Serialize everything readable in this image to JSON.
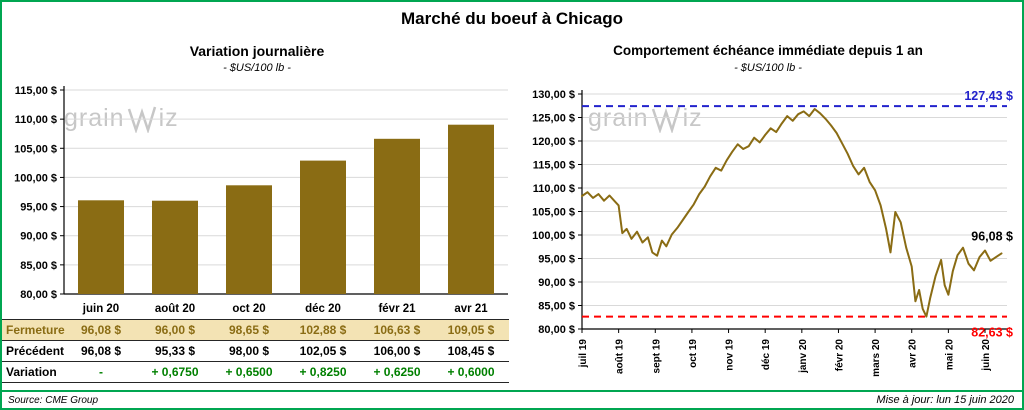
{
  "page": {
    "title": "Marché du boeuf à Chicago",
    "source": "Source: CME Group",
    "updated": "Mise à jour: lun 15 juin 2020",
    "watermark": {
      "full": "grainwiz",
      "pre": "grain",
      "post": "iz"
    }
  },
  "colors": {
    "gold": "#8a6c14",
    "beige": "#f3e3b4",
    "green_text": "#008000",
    "frame_green": "#00a651",
    "blue": "#2222cc",
    "red": "#ff0000",
    "grid": "#d9d9d9",
    "watermark_gray": "#c7c7c7",
    "axis": "#000000"
  },
  "chart_data": [
    {
      "id": "variation-journaliere",
      "type": "bar",
      "title": "Variation journalière",
      "subtitle": "- $US/100 lb -",
      "categories": [
        "juin 20",
        "août 20",
        "oct 20",
        "déc 20",
        "févr 21",
        "avr 21"
      ],
      "values": [
        96.08,
        96.0,
        98.65,
        102.88,
        106.63,
        109.05
      ],
      "ylim": [
        80,
        115
      ],
      "ytick_step": 5,
      "ytick_labels": [
        "115,00 $",
        "110,00 $",
        "105,00 $",
        "100,00 $",
        "95,00 $",
        "90,00 $",
        "85,00 $",
        "80,00 $"
      ],
      "grid": true,
      "legend": false,
      "bar_color": "#8a6c14"
    },
    {
      "id": "comportement-echeance-immediate",
      "type": "line",
      "title": "Comportement échéance immédiate depuis 1 an",
      "subtitle": "- $US/100 lb -",
      "ylim": [
        80,
        130
      ],
      "ytick_step": 5,
      "ytick_labels": [
        "130,00 $",
        "125,00 $",
        "120,00 $",
        "115,00 $",
        "110,00 $",
        "105,00 $",
        "100,00 $",
        "95,00 $",
        "90,00 $",
        "85,00 $",
        "80,00 $"
      ],
      "x_tick_labels": [
        "juil 19",
        "août 19",
        "sept 19",
        "oct 19",
        "nov 19",
        "déc 19",
        "janv 20",
        "févr 20",
        "mars 20",
        "avr 20",
        "mai 20",
        "juin 20"
      ],
      "grid": true,
      "legend": false,
      "reference_lines": [
        {
          "name": "yearly-high",
          "value": 127.43,
          "label": "127,43 $",
          "color": "#2222cc",
          "style": "dashed",
          "label_position": "above"
        },
        {
          "name": "yearly-low",
          "value": 82.63,
          "label": "82,63 $",
          "color": "#ff0000",
          "style": "dashed",
          "label_position": "below"
        }
      ],
      "last_point_label": {
        "text": "96,08 $",
        "value": 96.08,
        "color": "#000000"
      },
      "series": [
        {
          "name": "échéance immédiate",
          "color": "#8a6c14",
          "points": [
            [
              0,
              108.3
            ],
            [
              0.15,
              109.1
            ],
            [
              0.3,
              107.9
            ],
            [
              0.45,
              108.7
            ],
            [
              0.6,
              107.3
            ],
            [
              0.75,
              108.4
            ],
            [
              0.9,
              107.1
            ],
            [
              1.0,
              106.3
            ],
            [
              1.1,
              100.4
            ],
            [
              1.22,
              101.3
            ],
            [
              1.35,
              99.2
            ],
            [
              1.5,
              100.7
            ],
            [
              1.65,
              98.4
            ],
            [
              1.8,
              99.5
            ],
            [
              1.92,
              96.3
            ],
            [
              2.05,
              95.6
            ],
            [
              2.18,
              98.8
            ],
            [
              2.3,
              97.6
            ],
            [
              2.45,
              100.1
            ],
            [
              2.6,
              101.5
            ],
            [
              2.75,
              103.2
            ],
            [
              2.9,
              104.9
            ],
            [
              3.05,
              106.5
            ],
            [
              3.2,
              108.7
            ],
            [
              3.35,
              110.3
            ],
            [
              3.5,
              112.5
            ],
            [
              3.65,
              114.3
            ],
            [
              3.8,
              113.7
            ],
            [
              3.95,
              115.9
            ],
            [
              4.1,
              117.7
            ],
            [
              4.25,
              119.3
            ],
            [
              4.4,
              118.3
            ],
            [
              4.55,
              118.9
            ],
            [
              4.7,
              120.7
            ],
            [
              4.85,
              119.7
            ],
            [
              5.0,
              121.3
            ],
            [
              5.15,
              122.7
            ],
            [
              5.3,
              121.9
            ],
            [
              5.45,
              123.7
            ],
            [
              5.6,
              125.3
            ],
            [
              5.75,
              124.3
            ],
            [
              5.9,
              125.7
            ],
            [
              6.05,
              126.3
            ],
            [
              6.2,
              125.3
            ],
            [
              6.35,
              126.8
            ],
            [
              6.5,
              125.9
            ],
            [
              6.65,
              124.7
            ],
            [
              6.8,
              123.3
            ],
            [
              6.95,
              121.7
            ],
            [
              7.1,
              119.5
            ],
            [
              7.25,
              117.3
            ],
            [
              7.4,
              114.7
            ],
            [
              7.55,
              112.9
            ],
            [
              7.7,
              114.3
            ],
            [
              7.85,
              111.3
            ],
            [
              8.0,
              109.5
            ],
            [
              8.15,
              106.3
            ],
            [
              8.3,
              101.3
            ],
            [
              8.42,
              96.3
            ],
            [
              8.55,
              104.9
            ],
            [
              8.7,
              102.7
            ],
            [
              8.85,
              97.3
            ],
            [
              9.0,
              93.3
            ],
            [
              9.1,
              85.9
            ],
            [
              9.2,
              88.3
            ],
            [
              9.3,
              84.3
            ],
            [
              9.4,
              82.63
            ],
            [
              9.5,
              86.5
            ],
            [
              9.65,
              91.3
            ],
            [
              9.8,
              94.7
            ],
            [
              9.9,
              89.3
            ],
            [
              10.0,
              87.3
            ],
            [
              10.12,
              92.3
            ],
            [
              10.25,
              95.7
            ],
            [
              10.4,
              97.3
            ],
            [
              10.55,
              93.9
            ],
            [
              10.7,
              92.5
            ],
            [
              10.85,
              95.3
            ],
            [
              11.0,
              96.7
            ],
            [
              11.15,
              94.5
            ],
            [
              11.3,
              95.3
            ],
            [
              11.45,
              96.08
            ]
          ]
        }
      ]
    }
  ],
  "price_table": {
    "rows": [
      {
        "label": "Fermeture",
        "cells": [
          "96,08  $",
          "96,00  $",
          "98,65  $",
          "102,88  $",
          "106,63  $",
          "109,05  $"
        ]
      },
      {
        "label": "Précédent",
        "cells": [
          "96,08  $",
          "95,33  $",
          "98,00  $",
          "102,05  $",
          "106,00  $",
          "108,45  $"
        ]
      },
      {
        "label": "Variation",
        "cells": [
          "-",
          "+ 0,6750",
          "+ 0,6500",
          "+ 0,8250",
          "+ 0,6250",
          "+ 0,6000"
        ]
      }
    ]
  }
}
